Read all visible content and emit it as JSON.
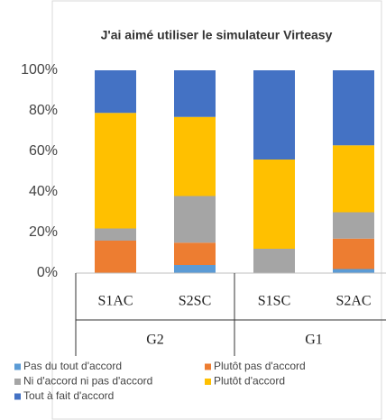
{
  "chart_data": {
    "type": "stacked_bar",
    "title": "J'ai aimé utiliser le simulateur Virteasy",
    "categories": [
      "S1AC",
      "S2SC",
      "S1SC",
      "S2AC"
    ],
    "groups": [
      "G2",
      "G1"
    ],
    "series": [
      {
        "name": "Pas du tout d'accord",
        "color": "#5b9bd5",
        "values": [
          0,
          4,
          0,
          2
        ]
      },
      {
        "name": "Plutôt pas d'accord",
        "color": "#ed7d31",
        "values": [
          16,
          11,
          0,
          15
        ]
      },
      {
        "name": "Ni d'accord ni pas d'accord",
        "color": "#a5a5a5",
        "values": [
          6,
          23,
          12,
          13
        ]
      },
      {
        "name": "Plutôt d'accord",
        "color": "#ffc000",
        "values": [
          57,
          39,
          44,
          33
        ]
      },
      {
        "name": "Tout à fait d'accord",
        "color": "#4472c4",
        "values": [
          21,
          23,
          44,
          37
        ]
      }
    ],
    "ylim": [
      0,
      100
    ],
    "yticks": [
      {
        "value": 0,
        "label": "0%"
      },
      {
        "value": 20,
        "label": "20%"
      },
      {
        "value": 40,
        "label": "40%"
      },
      {
        "value": 60,
        "label": "60%"
      },
      {
        "value": 80,
        "label": "80%"
      },
      {
        "value": 100,
        "label": "100%"
      }
    ],
    "legend": "bottom"
  }
}
